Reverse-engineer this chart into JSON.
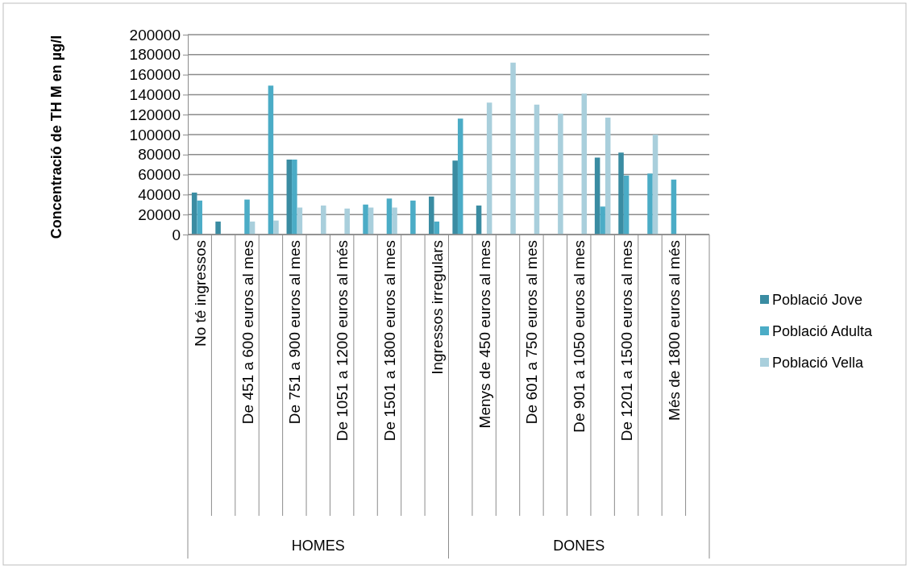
{
  "chart_data": {
    "type": "bar",
    "ylabel": "Concentració de TH M en µg/l",
    "categories": [
      "No té ingressos",
      null,
      "De 451 a 600 euros al mes",
      null,
      "De 751 a 900 euros al mes",
      null,
      "De 1051 a 1200 euros al més",
      null,
      "De 1501 a 1800 euros al mes",
      null,
      "Ingressos irregulars",
      null,
      "Menys de 450 euros al mes",
      null,
      "De 601 a 750 euros al mes",
      null,
      "De 901 a 1050 euros al mes",
      null,
      "De 1201 a 1500 euros al mes",
      null,
      "Més de 1800 euros al més",
      null
    ],
    "annotations": [
      "HOMES",
      "DONES"
    ],
    "series": [
      {
        "name": "Població Jove",
        "color": "#3a8ca2",
        "values": [
          42000,
          13000,
          null,
          null,
          75000,
          null,
          null,
          null,
          null,
          null,
          38000,
          74000,
          29000,
          null,
          null,
          null,
          null,
          77000,
          82000,
          null,
          null,
          null
        ]
      },
      {
        "name": "Població Adulta",
        "color": "#4bacc6",
        "values": [
          34000,
          null,
          35000,
          149000,
          75000,
          null,
          null,
          30000,
          36000,
          34000,
          13000,
          116000,
          null,
          null,
          null,
          null,
          null,
          28000,
          59000,
          61000,
          55000,
          null
        ]
      },
      {
        "name": "Població Vella",
        "color": "#a9cfdc",
        "values": [
          null,
          null,
          13000,
          14000,
          27000,
          29000,
          26000,
          27000,
          27000,
          null,
          null,
          null,
          132000,
          172000,
          130000,
          121000,
          141000,
          117000,
          null,
          100000,
          null,
          null
        ]
      }
    ],
    "ylim": [
      0,
      200000
    ],
    "yticks": [
      0,
      20000,
      40000,
      60000,
      80000,
      100000,
      120000,
      140000,
      160000,
      180000,
      200000
    ],
    "grid": "y",
    "legend": "right"
  }
}
